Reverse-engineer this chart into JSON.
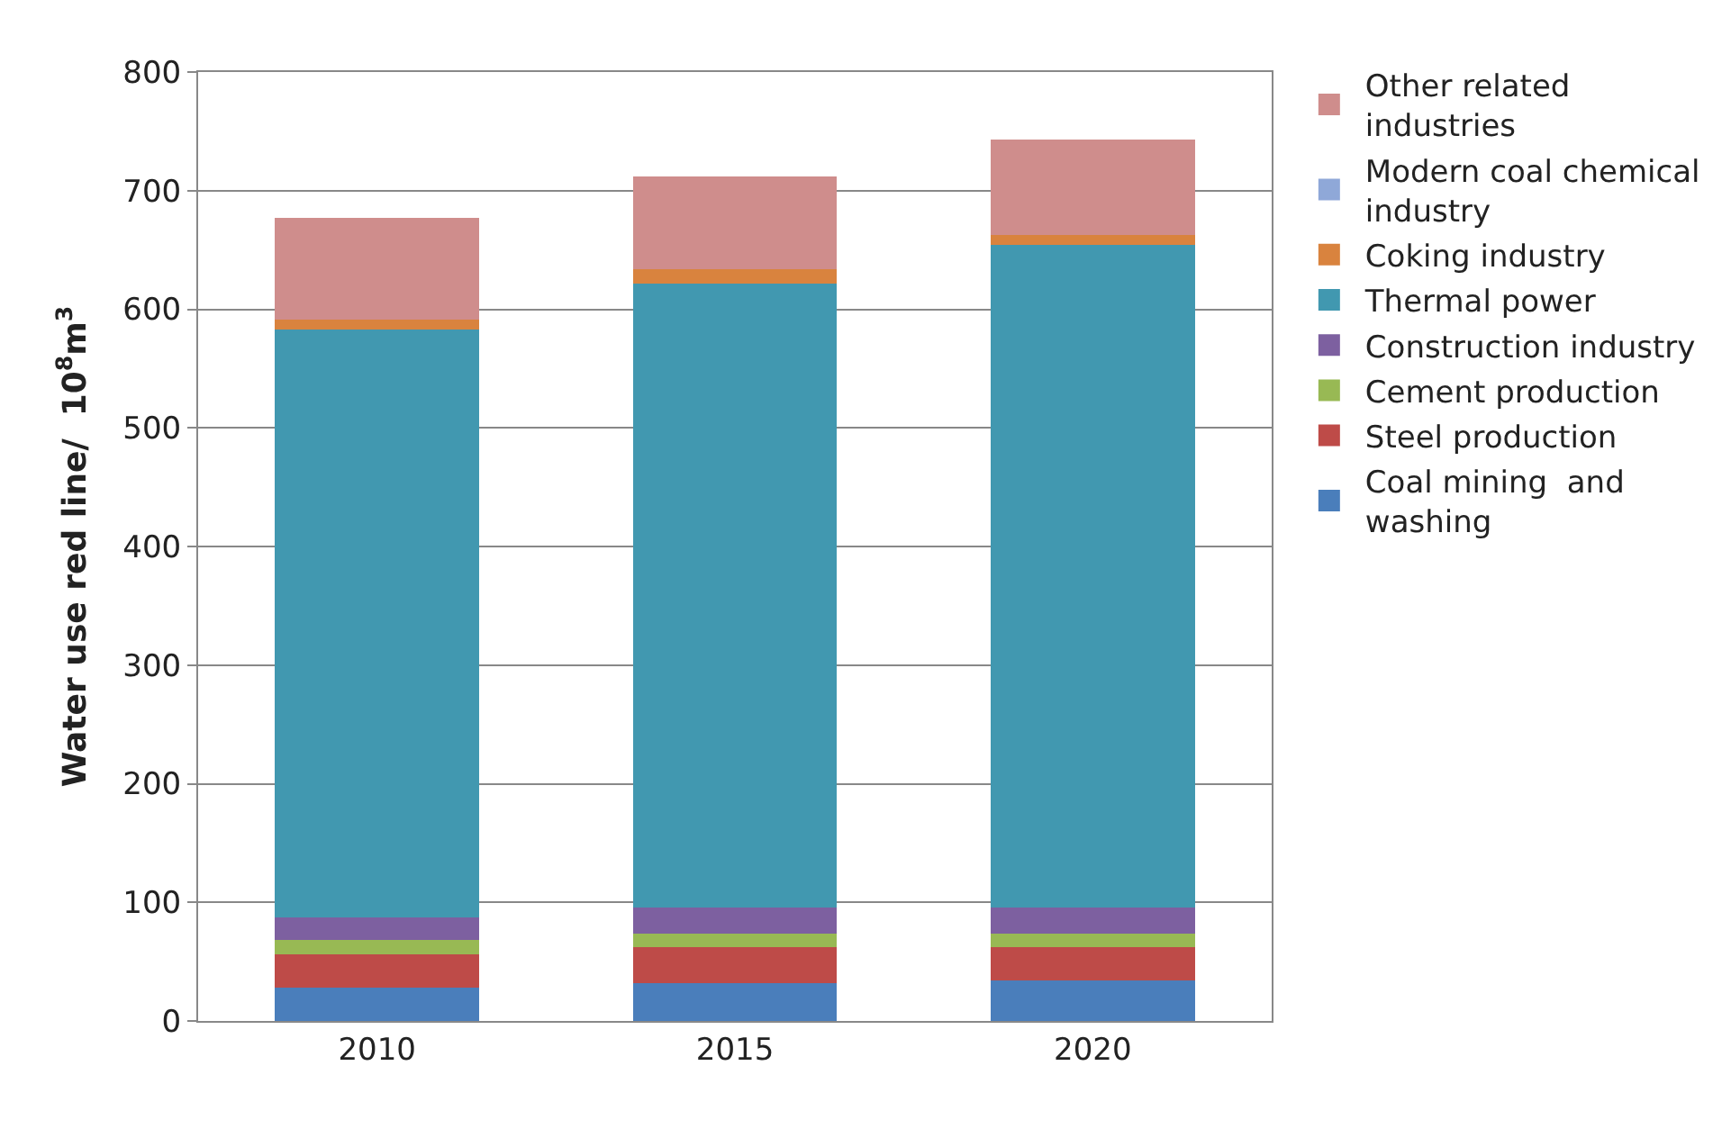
{
  "chart_data": {
    "type": "bar",
    "stacked": true,
    "categories": [
      "2010",
      "2015",
      "2020"
    ],
    "ylabel": "Water use red line/  10$^{8}$m$^{3}$",
    "ylim": [
      0,
      800
    ],
    "yticks": [
      0,
      100,
      200,
      300,
      400,
      500,
      600,
      700,
      800
    ],
    "grid": "y",
    "legend": "right",
    "series": [
      {
        "name": "Coal mining  and washing",
        "color": "#4a7ebb",
        "values": [
          28,
          32,
          34
        ]
      },
      {
        "name": "Steel production",
        "color": "#be4b48",
        "values": [
          28,
          30,
          28
        ]
      },
      {
        "name": "Cement production",
        "color": "#98b954",
        "values": [
          12,
          12,
          12
        ]
      },
      {
        "name": "Construction industry",
        "color": "#7d60a0",
        "values": [
          19,
          22,
          22
        ]
      },
      {
        "name": "Thermal power",
        "color": "#4198b0",
        "values": [
          496,
          526,
          558
        ]
      },
      {
        "name": "Coking industry",
        "color": "#d9833e",
        "values": [
          8,
          12,
          9
        ]
      },
      {
        "name": "Modern coal chemical industry",
        "color": "#8fa8d8",
        "values": [
          0,
          0,
          0
        ]
      },
      {
        "name": "Other related industries",
        "color": "#cf8d8c",
        "values": [
          86,
          78,
          80
        ]
      }
    ]
  }
}
